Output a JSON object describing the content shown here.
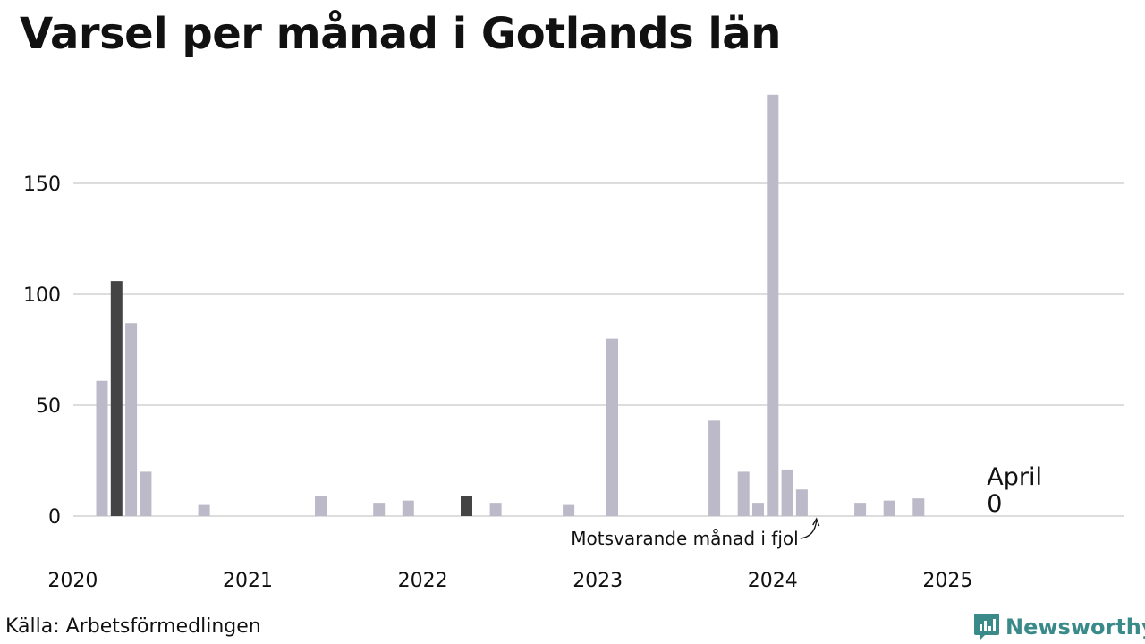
{
  "title": "Varsel per månad i Gotlands län",
  "source": "Källa: Arbetsförmedlingen",
  "logo": {
    "name": "Newsworthy",
    "icon": "newsworthy-logo-icon",
    "color": "#3a8a8a"
  },
  "colors": {
    "bar": "#bcbac8",
    "highlight": "#444444",
    "grid": "#dddddd",
    "text": "#111111"
  },
  "chart_data": {
    "type": "bar",
    "title": "Varsel per månad i Gotlands län",
    "xlabel": "",
    "ylabel": "",
    "ylim": [
      0,
      190
    ],
    "y_ticks": [
      0,
      50,
      100,
      150
    ],
    "x_ticks": [
      "2020",
      "2021",
      "2022",
      "2023",
      "2024",
      "2025"
    ],
    "grid": true,
    "bars": [
      {
        "date": "2020-03",
        "value": 61
      },
      {
        "date": "2020-04",
        "value": 106,
        "highlight": true
      },
      {
        "date": "2020-05",
        "value": 87
      },
      {
        "date": "2020-06",
        "value": 20
      },
      {
        "date": "2020-10",
        "value": 5
      },
      {
        "date": "2021-06",
        "value": 9
      },
      {
        "date": "2021-10",
        "value": 6
      },
      {
        "date": "2021-12",
        "value": 7
      },
      {
        "date": "2022-04",
        "value": 9,
        "highlight": true
      },
      {
        "date": "2022-06",
        "value": 6
      },
      {
        "date": "2022-11",
        "value": 5
      },
      {
        "date": "2023-02",
        "value": 80
      },
      {
        "date": "2023-09",
        "value": 43
      },
      {
        "date": "2023-11",
        "value": 20
      },
      {
        "date": "2023-12",
        "value": 6
      },
      {
        "date": "2024-01",
        "value": 190
      },
      {
        "date": "2024-02",
        "value": 21
      },
      {
        "date": "2024-03",
        "value": 12
      },
      {
        "date": "2024-07",
        "value": 6
      },
      {
        "date": "2024-09",
        "value": 7
      },
      {
        "date": "2024-11",
        "value": 8
      }
    ],
    "annotations": {
      "current": {
        "date": "2025-04",
        "label": "April",
        "value": "0"
      },
      "last_year": {
        "date": "2024-04",
        "label": "Motsvarande månad i fjol"
      }
    }
  }
}
